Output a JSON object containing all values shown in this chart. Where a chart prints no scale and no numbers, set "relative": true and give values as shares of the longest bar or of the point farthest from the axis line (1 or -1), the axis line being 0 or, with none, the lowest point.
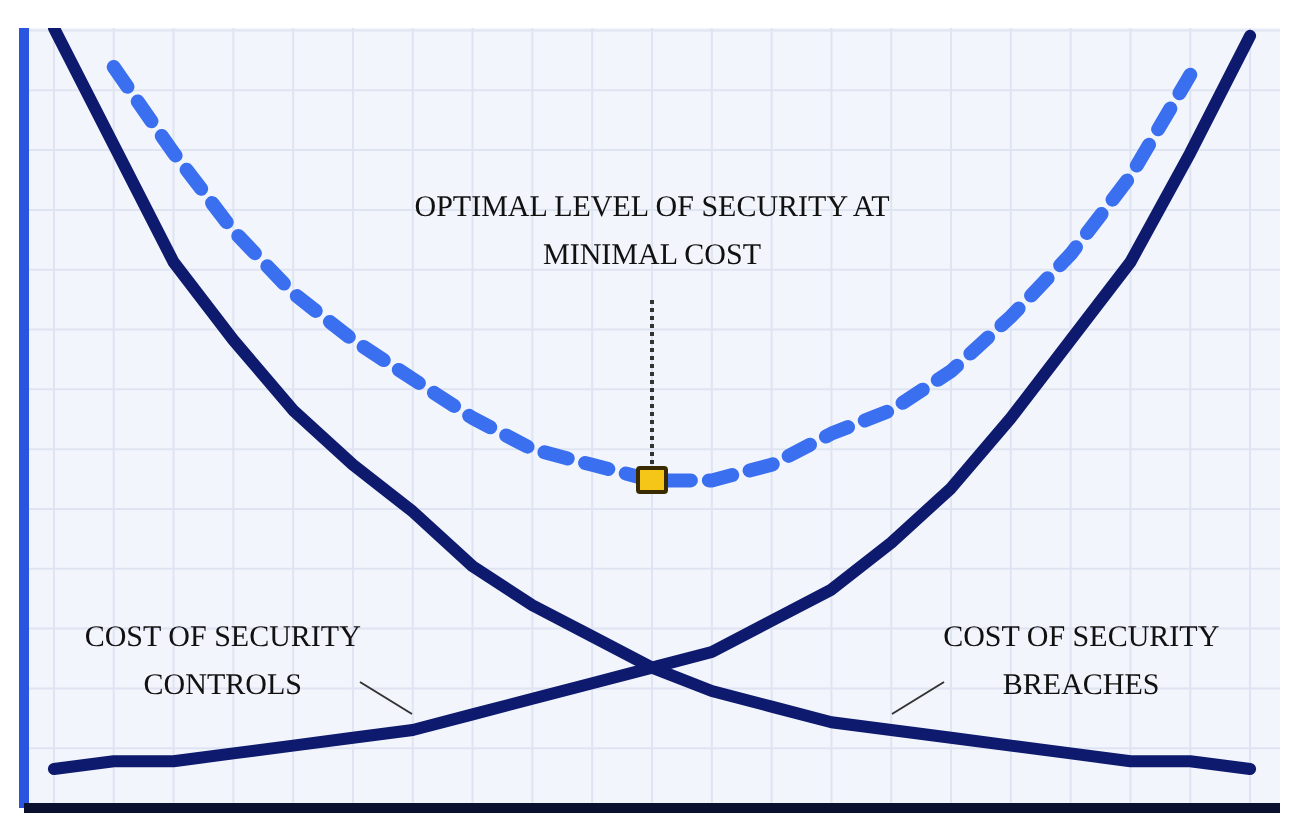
{
  "chart_data": {
    "type": "line",
    "relative": true,
    "grid": true,
    "legend": false,
    "marker": "none",
    "categories": [
      null,
      null,
      null,
      null,
      null,
      null,
      null,
      null,
      null,
      null,
      null,
      null,
      null,
      null,
      null,
      null,
      null,
      null,
      null,
      null,
      null
    ],
    "annotations": [
      "OPTIMAL LEVEL OF SECURITY AT MINIMAL COST"
    ],
    "series": [
      {
        "name": "COST OF SECURITY CONTROLS",
        "color": "#0d1a6e",
        "values": [
          0.05,
          0.06,
          0.06,
          0.07,
          0.08,
          0.09,
          0.1,
          0.12,
          0.14,
          0.16,
          0.18,
          0.2,
          0.24,
          0.28,
          0.34,
          0.41,
          0.5,
          0.6,
          0.7,
          0.84,
          0.99
        ]
      },
      {
        "name": "COST OF SECURITY BREACHES",
        "color": "#0d1a6e",
        "values": [
          1,
          0.85,
          0.7,
          0.6,
          0.51,
          0.44,
          0.38,
          0.31,
          0.26,
          0.22,
          0.18,
          0.15,
          0.13,
          0.11,
          0.1,
          0.09,
          0.08,
          0.07,
          0.06,
          0.06,
          0.05
        ]
      },
      {
        "line_style": "dashed",
        "color": "#3a6ff0",
        "values": [
          null,
          0.95,
          0.84,
          0.74,
          0.66,
          0.6,
          0.55,
          0.5,
          0.46,
          0.44,
          0.42,
          0.42,
          0.44,
          0.48,
          0.51,
          0.56,
          0.63,
          0.71,
          0.81,
          0.94,
          null
        ]
      }
    ]
  }
}
